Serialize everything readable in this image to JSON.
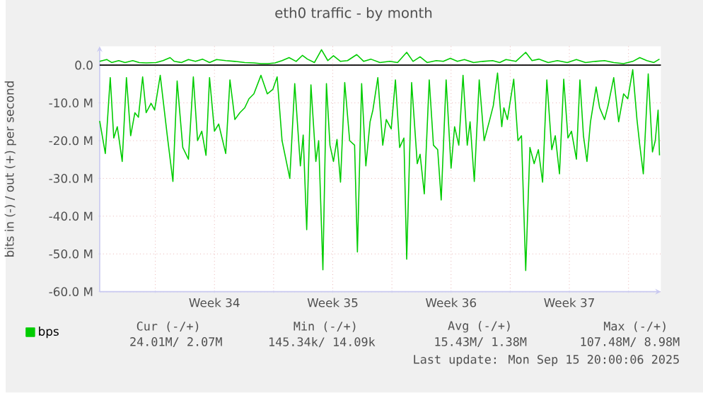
{
  "chart_data": {
    "type": "line",
    "title": "eth0 traffic - by month",
    "ylabel": "bits in (-) / out (+) per second",
    "x": [
      "2025-08-13T17:00",
      "2025-08-14T01:00",
      "2025-08-14T08:00",
      "2025-08-14T13:00",
      "2025-08-14T18:00",
      "2025-08-15T01:00",
      "2025-08-15T07:00",
      "2025-08-15T13:00",
      "2025-08-15T19:00",
      "2025-08-16T00:00",
      "2025-08-16T06:00",
      "2025-08-16T11:00",
      "2025-08-16T18:00",
      "2025-08-16T23:00",
      "2025-08-17T07:00",
      "2025-08-17T17:00",
      "2025-08-18T01:00",
      "2025-08-18T07:00",
      "2025-08-18T15:00",
      "2025-08-18T23:00",
      "2025-08-19T06:00",
      "2025-08-19T12:00",
      "2025-08-19T18:00",
      "2025-08-20T00:00",
      "2025-08-20T05:00",
      "2025-08-20T12:00",
      "2025-08-20T18:00",
      "2025-08-21T04:00",
      "2025-08-21T10:00",
      "2025-08-21T17:00",
      "2025-08-22T00:00",
      "2025-08-22T07:00",
      "2025-08-22T13:00",
      "2025-08-22T20:00",
      "2025-08-23T06:00",
      "2025-08-23T15:00",
      "2025-08-23T23:00",
      "2025-08-24T05:00",
      "2025-08-24T12:00",
      "2025-08-24T23:00",
      "2025-08-25T06:00",
      "2025-08-25T14:00",
      "2025-08-25T18:00",
      "2025-08-25T23:00",
      "2025-08-26T05:00",
      "2025-08-26T12:00",
      "2025-08-26T16:00",
      "2025-08-26T22:00",
      "2025-08-27T03:00",
      "2025-08-27T08:00",
      "2025-08-27T13:00",
      "2025-08-27T18:00",
      "2025-08-27T23:00",
      "2025-08-28T05:00",
      "2025-08-28T12:00",
      "2025-08-28T19:00",
      "2025-08-28T23:00",
      "2025-08-29T05:00",
      "2025-08-29T11:00",
      "2025-08-29T17:00",
      "2025-08-29T21:00",
      "2025-08-30T04:00",
      "2025-08-30T11:00",
      "2025-08-30T16:00",
      "2025-08-30T23:00",
      "2025-08-31T05:00",
      "2025-08-31T11:00",
      "2025-08-31T17:00",
      "2025-08-31T21:00",
      "2025-09-01T04:00",
      "2025-09-01T12:00",
      "2025-09-01T16:00",
      "2025-09-01T22:00",
      "2025-09-02T05:00",
      "2025-09-02T11:00",
      "2025-09-02T17:00",
      "2025-09-02T22:00",
      "2025-09-03T05:00",
      "2025-09-03T12:00",
      "2025-09-03T17:00",
      "2025-09-03T23:00",
      "2025-09-04T05:00",
      "2025-09-04T11:00",
      "2025-09-04T15:00",
      "2025-09-04T21:00",
      "2025-09-05T04:00",
      "2025-09-05T11:00",
      "2025-09-05T19:00",
      "2025-09-06T00:00",
      "2025-09-06T06:00",
      "2025-09-06T12:00",
      "2025-09-06T15:00",
      "2025-09-06T20:00",
      "2025-09-07T05:00",
      "2025-09-07T11:00",
      "2025-09-07T16:00",
      "2025-09-07T22:00",
      "2025-09-08T04:00",
      "2025-09-08T10:00",
      "2025-09-08T16:00",
      "2025-09-08T22:00",
      "2025-09-09T04:00",
      "2025-09-09T11:00",
      "2025-09-09T16:00",
      "2025-09-09T22:00",
      "2025-09-10T04:00",
      "2025-09-10T10:00",
      "2025-09-10T15:00",
      "2025-09-10T22:00",
      "2025-09-11T03:00",
      "2025-09-11T08:00",
      "2025-09-11T13:00",
      "2025-09-11T18:00",
      "2025-09-12T02:00",
      "2025-09-12T07:00",
      "2025-09-12T14:00",
      "2025-09-12T19:00",
      "2025-09-13T03:00",
      "2025-09-13T10:00",
      "2025-09-13T17:00",
      "2025-09-13T23:00",
      "2025-09-14T06:00",
      "2025-09-14T12:00",
      "2025-09-14T16:00",
      "2025-09-14T21:00",
      "2025-09-15T04:00",
      "2025-09-15T10:00",
      "2025-09-15T14:00",
      "2025-09-15T18:00",
      "2025-09-15T20:00"
    ],
    "series": [
      {
        "name": "bps",
        "color": "#00cc00",
        "values": [
          -14.8,
          -23.4,
          -3.3,
          -19.3,
          -16.3,
          -25.5,
          -3.3,
          -18.7,
          -12.6,
          -13.8,
          -3.1,
          -12.6,
          -10.1,
          -11.9,
          -2.7,
          -18.7,
          -30.8,
          -4.2,
          -21.8,
          -24.9,
          -3.1,
          -20.0,
          -17.5,
          -23.9,
          -3.3,
          -17.5,
          -15.6,
          -23.4,
          -3.9,
          -14.4,
          -12.6,
          -11.3,
          -8.9,
          -7.6,
          -2.7,
          -7.6,
          -6.4,
          -3.1,
          -20.0,
          -30.0,
          -4.9,
          -26.7,
          -18.5,
          -43.6,
          -5.2,
          -25.5,
          -20.0,
          -54.2,
          -4.9,
          -21.2,
          -25.5,
          -19.7,
          -31.0,
          -4.6,
          -20.0,
          -21.2,
          -49.5,
          -4.9,
          -26.7,
          -15.0,
          -11.9,
          -3.3,
          -21.2,
          -14.4,
          -16.9,
          -3.9,
          -21.8,
          -19.3,
          -51.4,
          -4.6,
          -26.1,
          -23.6,
          -34.1,
          -3.9,
          -21.2,
          -22.4,
          -35.7,
          -3.9,
          -27.3,
          -16.3,
          -21.2,
          -2.7,
          -21.2,
          -15.0,
          -30.8,
          -3.9,
          -20.0,
          -14.4,
          -10.7,
          -2.1,
          -16.3,
          -11.3,
          -14.4,
          -3.7,
          -20.0,
          -18.7,
          -54.4,
          -21.8,
          -26.1,
          -22.4,
          -31.0,
          -3.9,
          -22.4,
          -18.7,
          -28.8,
          -3.7,
          -19.3,
          -17.5,
          -24.9,
          -3.9,
          -18.7,
          -25.5,
          -15.0,
          -5.8,
          -11.3,
          -14.4,
          -10.7,
          -3.3,
          -15.0,
          -7.6,
          -8.9,
          -1.2,
          -14.4,
          -21.2,
          -28.8,
          -2.3,
          -23.0,
          -20.0,
          -11.9,
          -23.9
        ]
      },
      {
        "color": "#00cc00",
        "x": [
          "2025-08-13T17:00",
          "2025-08-14T03:00",
          "2025-08-14T10:00",
          "2025-08-14T20:00",
          "2025-08-15T05:00",
          "2025-08-15T16:00",
          "2025-08-16T01:00",
          "2025-08-16T11:00",
          "2025-08-17T01:00",
          "2025-08-17T11:00",
          "2025-08-17T21:00",
          "2025-08-18T03:00",
          "2025-08-18T13:00",
          "2025-08-18T23:00",
          "2025-08-19T09:00",
          "2025-08-19T19:00",
          "2025-08-20T05:00",
          "2025-08-20T15:00",
          "2025-08-21T04:00",
          "2025-08-21T17:00",
          "2025-08-22T07:00",
          "2025-08-22T20:00",
          "2025-08-23T06:00",
          "2025-08-23T16:00",
          "2025-08-24T02:00",
          "2025-08-24T12:00",
          "2025-08-24T22:00",
          "2025-08-25T08:00",
          "2025-08-25T17:00",
          "2025-08-26T00:00",
          "2025-08-26T10:00",
          "2025-08-26T20:00",
          "2025-08-27T05:00",
          "2025-08-27T13:00",
          "2025-08-27T23:00",
          "2025-08-28T09:00",
          "2025-08-28T22:00",
          "2025-08-29T08:00",
          "2025-08-29T18:00",
          "2025-08-30T07:00",
          "2025-08-30T21:00",
          "2025-08-31T08:00",
          "2025-08-31T21:00",
          "2025-09-01T06:00",
          "2025-09-01T16:00",
          "2025-09-02T02:00",
          "2025-09-02T15:00",
          "2025-09-03T01:00",
          "2025-09-03T11:00",
          "2025-09-03T21:00",
          "2025-09-04T07:00",
          "2025-09-04T20:00",
          "2025-09-05T09:00",
          "2025-09-05T23:00",
          "2025-09-06T09:00",
          "2025-09-06T18:00",
          "2025-09-07T08:00",
          "2025-09-07T22:00",
          "2025-09-08T07:00",
          "2025-09-08T17:00",
          "2025-09-09T06:00",
          "2025-09-09T19:00",
          "2025-09-10T09:00",
          "2025-09-10T22:00",
          "2025-09-11T11:00",
          "2025-09-12T01:00",
          "2025-09-12T14:00",
          "2025-09-13T03:00",
          "2025-09-13T17:00",
          "2025-09-14T06:00",
          "2025-09-14T16:00",
          "2025-09-15T02:00",
          "2025-09-15T12:00",
          "2025-09-15T20:00"
        ],
        "values": [
          1.0,
          1.5,
          0.7,
          1.2,
          0.7,
          1.2,
          0.7,
          0.6,
          0.7,
          1.2,
          2.0,
          1.0,
          0.7,
          1.5,
          1.0,
          1.6,
          0.7,
          1.5,
          1.2,
          1.0,
          0.7,
          0.6,
          0.4,
          0.4,
          0.6,
          1.2,
          2.0,
          1.0,
          2.6,
          1.6,
          0.7,
          4.1,
          1.2,
          2.5,
          1.0,
          1.2,
          2.8,
          1.0,
          1.6,
          0.7,
          1.0,
          0.7,
          3.4,
          1.0,
          2.2,
          0.7,
          1.2,
          1.0,
          1.8,
          1.0,
          1.5,
          0.7,
          1.0,
          1.2,
          0.7,
          1.5,
          1.0,
          3.4,
          1.2,
          1.6,
          0.7,
          1.2,
          0.7,
          1.5,
          0.7,
          1.0,
          1.2,
          0.7,
          0.4,
          1.0,
          2.0,
          1.2,
          0.7,
          1.6
        ]
      }
    ],
    "xlim": [
      "2025-08-13T17:00",
      "2025-09-15T22:00"
    ],
    "xticks": [
      {
        "value": "2025-08-17",
        "label": null
      },
      {
        "value": "2025-08-20T12:00",
        "label": "Week 34"
      },
      {
        "value": "2025-08-24",
        "label": null
      },
      {
        "value": "2025-08-27T12:00",
        "label": "Week 35"
      },
      {
        "value": "2025-08-31",
        "label": null
      },
      {
        "value": "2025-09-03T12:00",
        "label": "Week 36"
      },
      {
        "value": "2025-09-07",
        "label": null
      },
      {
        "value": "2025-09-10T12:00",
        "label": "Week 37"
      },
      {
        "value": "2025-09-14",
        "label": null
      }
    ],
    "ylim": [
      -60,
      5
    ],
    "yticks": [
      {
        "value": -60,
        "label": "-60.0 M"
      },
      {
        "value": -50,
        "label": "-50.0 M"
      },
      {
        "value": -40,
        "label": "-40.0 M"
      },
      {
        "value": -30,
        "label": "-30.0 M"
      },
      {
        "value": -20,
        "label": "-20.0 M"
      },
      {
        "value": -10,
        "label": "-10.0 M"
      },
      {
        "value": 0,
        "label": "0.0"
      }
    ],
    "ref_lines": [
      {
        "axis": "y",
        "value": 0,
        "color": "#000000"
      }
    ],
    "grid": true,
    "legend": "bottom left",
    "marker": "none",
    "line_style": "solid",
    "annotations": [
      "Cur (-/+)",
      "Min (-/+)",
      "Avg (-/+)",
      "Max (-/+)",
      "24.01M/ 2.07M",
      "145.34k/ 14.09k",
      "15.43M/ 1.38M",
      "107.48M/ 8.98M",
      "Last update: Mon Sep 15 20:00:06 2025"
    ]
  }
}
